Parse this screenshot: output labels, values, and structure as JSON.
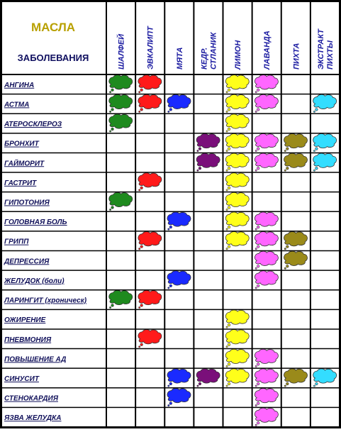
{
  "header": {
    "title": "МАСЛА",
    "subtitle": "ЗАБОЛЕВАНИЯ"
  },
  "columns": [
    {
      "lines": [
        "ШАЛФЕЙ"
      ],
      "color": "#1e8a1e"
    },
    {
      "lines": [
        "ЭВКАЛИПТ"
      ],
      "color": "#ff1a1a"
    },
    {
      "lines": [
        "МЯТА"
      ],
      "color": "#1a2aff"
    },
    {
      "lines": [
        "КЕДР.",
        "СТЛАНИК"
      ],
      "color": "#7a0f7a"
    },
    {
      "lines": [
        "ЛИМОН"
      ],
      "color": "#ffff1a"
    },
    {
      "lines": [
        "ЛАВАНДА"
      ],
      "color": "#ff66ff"
    },
    {
      "lines": [
        "ПИХТА"
      ],
      "color": "#9a8a1a"
    },
    {
      "lines": [
        "ЭКСТРАКТ",
        "ПИХТЫ"
      ],
      "color": "#33ddff"
    }
  ],
  "rows": [
    {
      "name": "АНГИНА",
      "cells": [
        true,
        true,
        false,
        false,
        true,
        true,
        false,
        false
      ]
    },
    {
      "name": "АСТМА",
      "cells": [
        true,
        true,
        true,
        false,
        true,
        true,
        false,
        true
      ]
    },
    {
      "name": "АТЕРОСКЛЕРОЗ",
      "cells": [
        true,
        false,
        false,
        false,
        true,
        false,
        false,
        false
      ]
    },
    {
      "name": "БРОНХИТ",
      "cells": [
        false,
        false,
        false,
        true,
        true,
        true,
        true,
        true
      ]
    },
    {
      "name": "ГАЙМОРИТ",
      "cells": [
        false,
        false,
        false,
        true,
        true,
        true,
        true,
        true
      ]
    },
    {
      "name": "ГАСТРИТ",
      "cells": [
        false,
        true,
        false,
        false,
        true,
        false,
        false,
        false
      ]
    },
    {
      "name": "ГИПОТОНИЯ",
      "cells": [
        true,
        false,
        false,
        false,
        true,
        false,
        false,
        false
      ]
    },
    {
      "name": "ГОЛОВНАЯ БОЛЬ",
      "cells": [
        false,
        false,
        true,
        false,
        true,
        true,
        false,
        false
      ]
    },
    {
      "name": "ГРИПП",
      "cells": [
        false,
        true,
        false,
        false,
        true,
        true,
        true,
        false
      ]
    },
    {
      "name": "ДЕПРЕССИЯ",
      "cells": [
        false,
        false,
        false,
        false,
        false,
        true,
        true,
        false
      ]
    },
    {
      "name": "ЖЕЛУДОК (боли)",
      "cells": [
        false,
        false,
        true,
        false,
        false,
        true,
        false,
        false
      ]
    },
    {
      "name": "ЛАРИНГИТ (хроническ)",
      "cells": [
        true,
        true,
        false,
        false,
        false,
        false,
        false,
        false
      ]
    },
    {
      "name": "ОЖИРЕНИЕ",
      "cells": [
        false,
        false,
        false,
        false,
        true,
        false,
        false,
        false
      ]
    },
    {
      "name": "ПНЕВМОНИЯ",
      "cells": [
        false,
        true,
        false,
        false,
        true,
        false,
        false,
        false
      ]
    },
    {
      "name": "ПОВЫШЕНИЕ АД",
      "cells": [
        false,
        false,
        false,
        false,
        true,
        true,
        false,
        false
      ]
    },
    {
      "name": "СИНУСИТ",
      "cells": [
        false,
        false,
        true,
        true,
        true,
        true,
        true,
        true
      ]
    },
    {
      "name": "СТЕНОКАРДИЯ",
      "cells": [
        false,
        false,
        true,
        false,
        false,
        true,
        false,
        false
      ]
    },
    {
      "name": "ЯЗВА ЖЕЛУДКА",
      "cells": [
        false,
        false,
        false,
        false,
        false,
        true,
        false,
        false
      ]
    }
  ]
}
